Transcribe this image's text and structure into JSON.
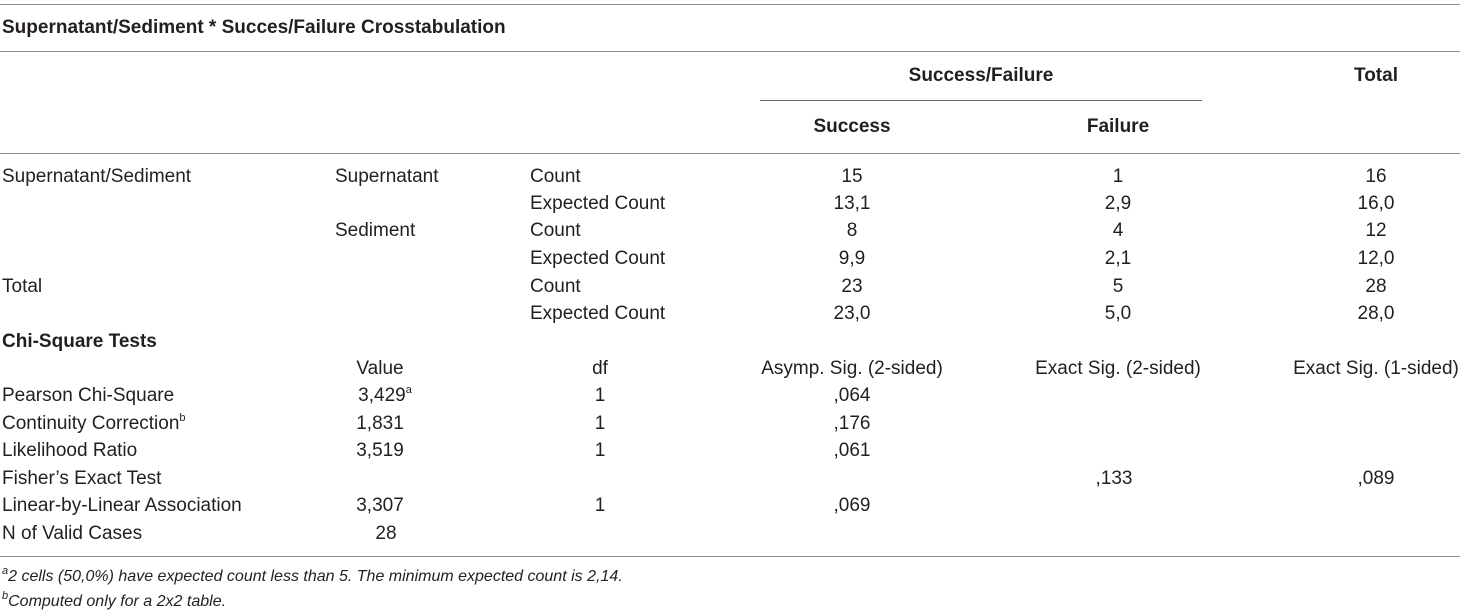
{
  "crosstab": {
    "title": "Supernatant/Sediment * Succes/Failure Crosstabulation",
    "col_group": "Success/Failure",
    "col_total": "Total",
    "col_success": "Success",
    "col_failure": "Failure",
    "rows": [
      {
        "group": "Supernatant/Sediment",
        "sub": "Supernatant",
        "stat": "Count",
        "success": "15",
        "failure": "1",
        "total": "16"
      },
      {
        "group": "",
        "sub": "",
        "stat": "Expected Count",
        "success": "13,1",
        "failure": "2,9",
        "total": "16,0"
      },
      {
        "group": "",
        "sub": "Sediment",
        "stat": "Count",
        "success": "8",
        "failure": "4",
        "total": "12"
      },
      {
        "group": "",
        "sub": "",
        "stat": "Expected Count",
        "success": "9,9",
        "failure": "2,1",
        "total": "12,0"
      },
      {
        "group": "Total",
        "sub": "",
        "stat": "Count",
        "success": "23",
        "failure": "5",
        "total": "28"
      },
      {
        "group": "",
        "sub": "",
        "stat": "Expected Count",
        "success": "23,0",
        "failure": "5,0",
        "total": "28,0"
      }
    ]
  },
  "chisq": {
    "title": "Chi-Square Tests",
    "headers": [
      "Value",
      "df",
      "Asymp. Sig. (2-sided)",
      "Exact Sig. (2-sided)",
      "Exact Sig. (1-sided)"
    ],
    "rows": [
      {
        "name": "Pearson Chi-Square",
        "name_sup": "",
        "value": "3,429",
        "value_sup": "a",
        "df": "1",
        "asymp": ",064",
        "exact2": "",
        "exact1": ""
      },
      {
        "name": "Continuity Correction",
        "name_sup": "b",
        "value": "1,831",
        "value_sup": "",
        "df": "1",
        "asymp": ",176",
        "exact2": "",
        "exact1": ""
      },
      {
        "name": "Likelihood Ratio",
        "name_sup": "",
        "value": "3,519",
        "value_sup": "",
        "df": "1",
        "asymp": ",061",
        "exact2": "",
        "exact1": ""
      },
      {
        "name": "Fisher’s Exact Test",
        "name_sup": "",
        "value": "",
        "value_sup": "",
        "df": "",
        "asymp": "",
        "exact2": ",133",
        "exact1": ",089"
      },
      {
        "name": "Linear-by-Linear Association",
        "name_sup": "",
        "value": "3,307",
        "value_sup": "",
        "df": "1",
        "asymp": ",069",
        "exact2": "",
        "exact1": ""
      },
      {
        "name": "N of Valid Cases",
        "name_sup": "",
        "value": "28",
        "value_sup": "",
        "df": "",
        "asymp": "",
        "exact2": "",
        "exact1": ""
      }
    ]
  },
  "footnotes": [
    {
      "mark": "a",
      "text": "2 cells (50,0%) have expected count less than 5. The minimum expected count is 2,14."
    },
    {
      "mark": "b",
      "text": "Computed only for a 2x2 table."
    }
  ]
}
